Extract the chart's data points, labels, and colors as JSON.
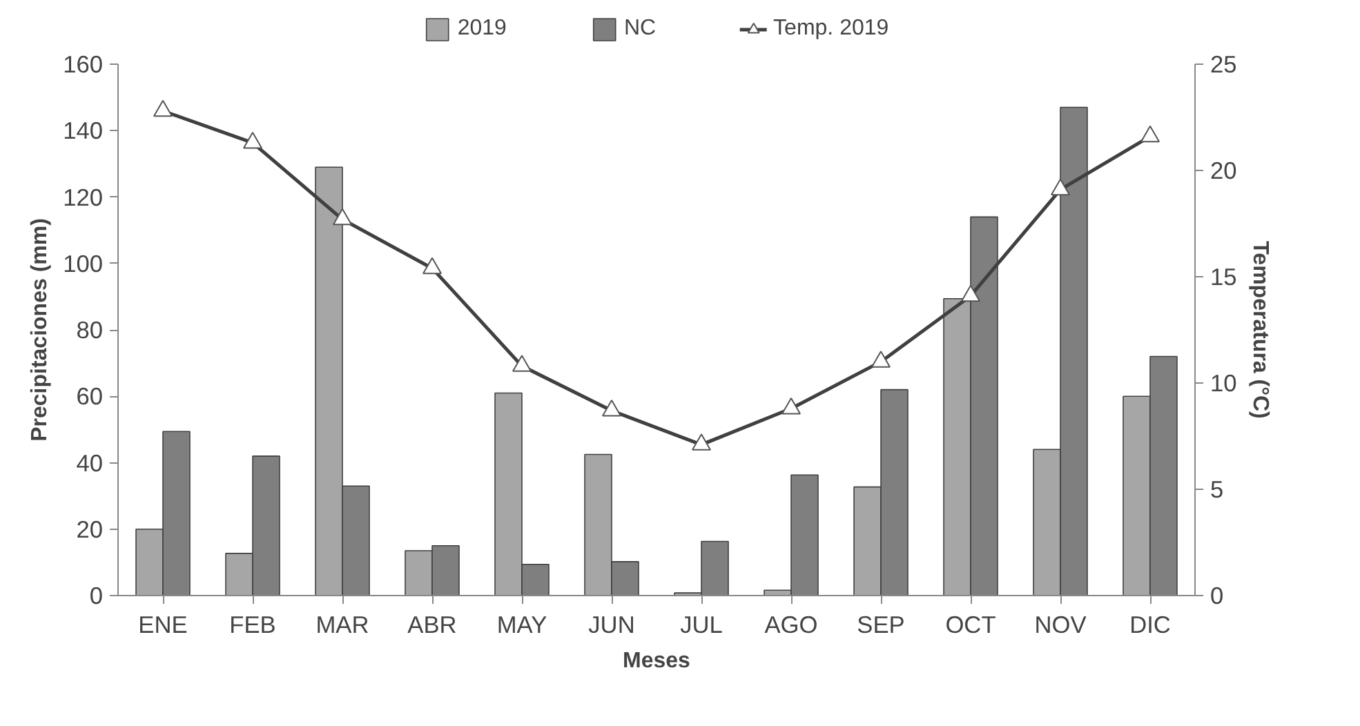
{
  "chart_data": {
    "type": "bar",
    "xlabel": "Meses",
    "ylabel": "Precipitaciones (mm)",
    "y2label": "Temperatura (°C)",
    "categories": [
      "ENE",
      "FEB",
      "MAR",
      "ABR",
      "MAY",
      "JUN",
      "JUL",
      "AGO",
      "SEP",
      "OCT",
      "NOV",
      "DIC"
    ],
    "series": [
      {
        "name": "2019",
        "color": "#a6a6a6",
        "values": [
          20,
          12.7,
          129,
          13.5,
          61,
          42.5,
          0.8,
          1.6,
          32.7,
          89.4,
          44,
          60
        ]
      },
      {
        "name": "NC",
        "color": "#7f7f7f",
        "values": [
          49.4,
          42,
          33,
          15,
          9.4,
          10.2,
          16.3,
          36.3,
          62,
          114,
          147,
          72
        ]
      },
      {
        "name": "Temp. 2019",
        "type": "line",
        "axis": "y2",
        "color": "#404040",
        "marker": "triangle",
        "values": [
          22.8,
          21.3,
          17.7,
          15.4,
          10.8,
          8.7,
          7.1,
          8.8,
          11.0,
          14.1,
          19.1,
          21.6
        ]
      }
    ],
    "ylim": [
      0,
      160
    ],
    "yticks": [
      0,
      20,
      40,
      60,
      80,
      100,
      120,
      140,
      160
    ],
    "y2lim": [
      0,
      25
    ],
    "y2ticks": [
      0,
      5,
      10,
      15,
      20,
      25
    ],
    "legend": "top",
    "grid": false
  }
}
